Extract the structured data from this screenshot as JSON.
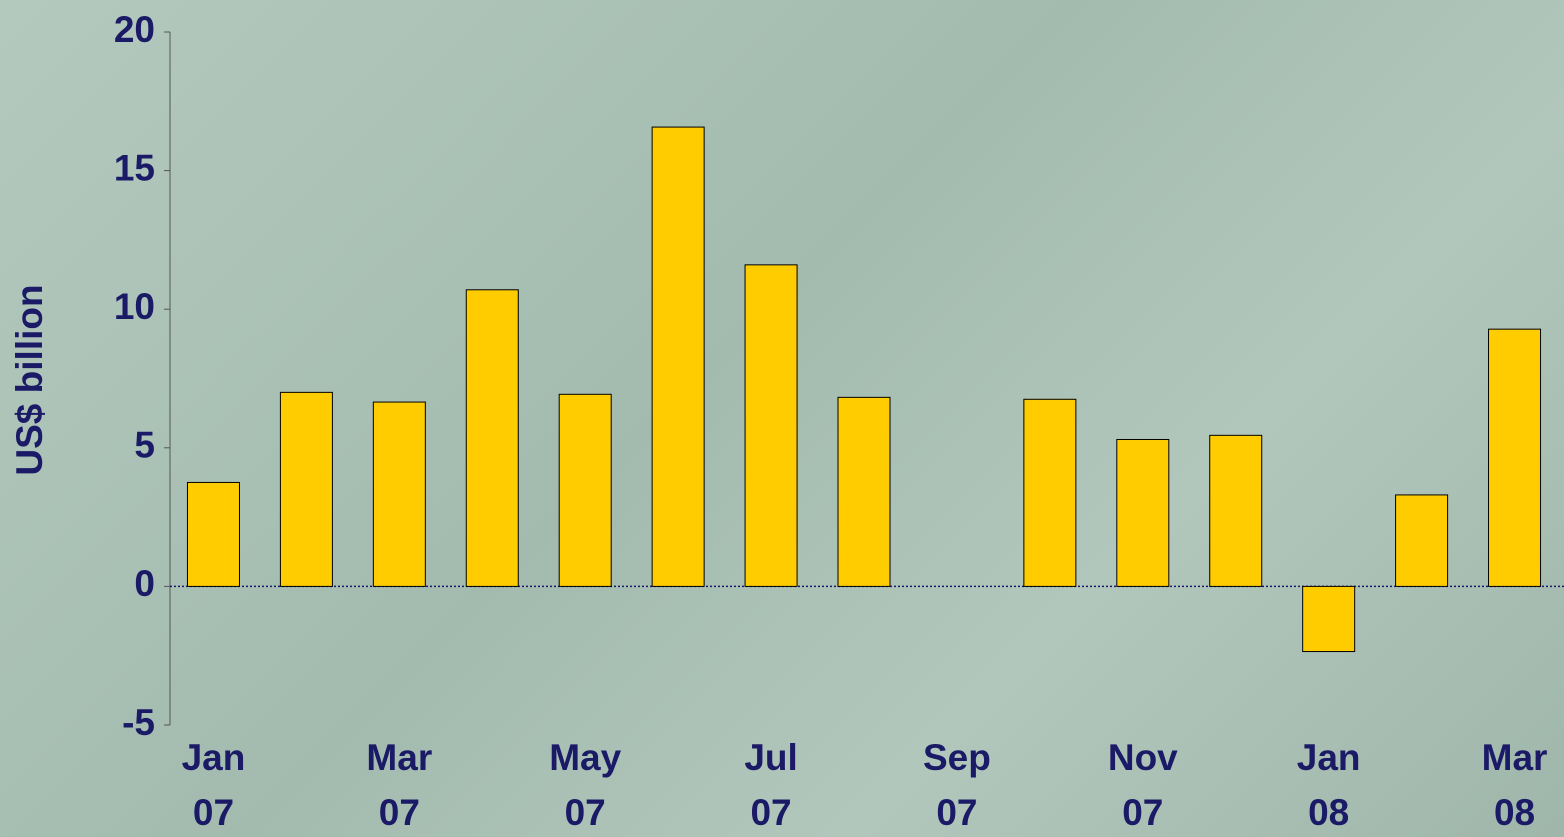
{
  "chart_data": {
    "type": "bar",
    "y_label": "US$ billion",
    "categories": [
      "Jan 07",
      null,
      "Mar 07",
      null,
      "May 07",
      null,
      "Jul 07",
      null,
      "Sep 07",
      null,
      "Nov 07",
      null,
      "Jan 08",
      null,
      "Mar 08"
    ],
    "values": [
      3.75,
      7.0,
      6.65,
      10.7,
      6.93,
      16.57,
      11.6,
      6.82,
      null,
      6.75,
      5.3,
      5.45,
      -2.35,
      3.3,
      9.28
    ],
    "color": "#ffcc00",
    "ylim": [
      -5,
      20
    ],
    "yticks": [
      -5,
      0,
      5,
      10,
      15,
      20
    ]
  }
}
